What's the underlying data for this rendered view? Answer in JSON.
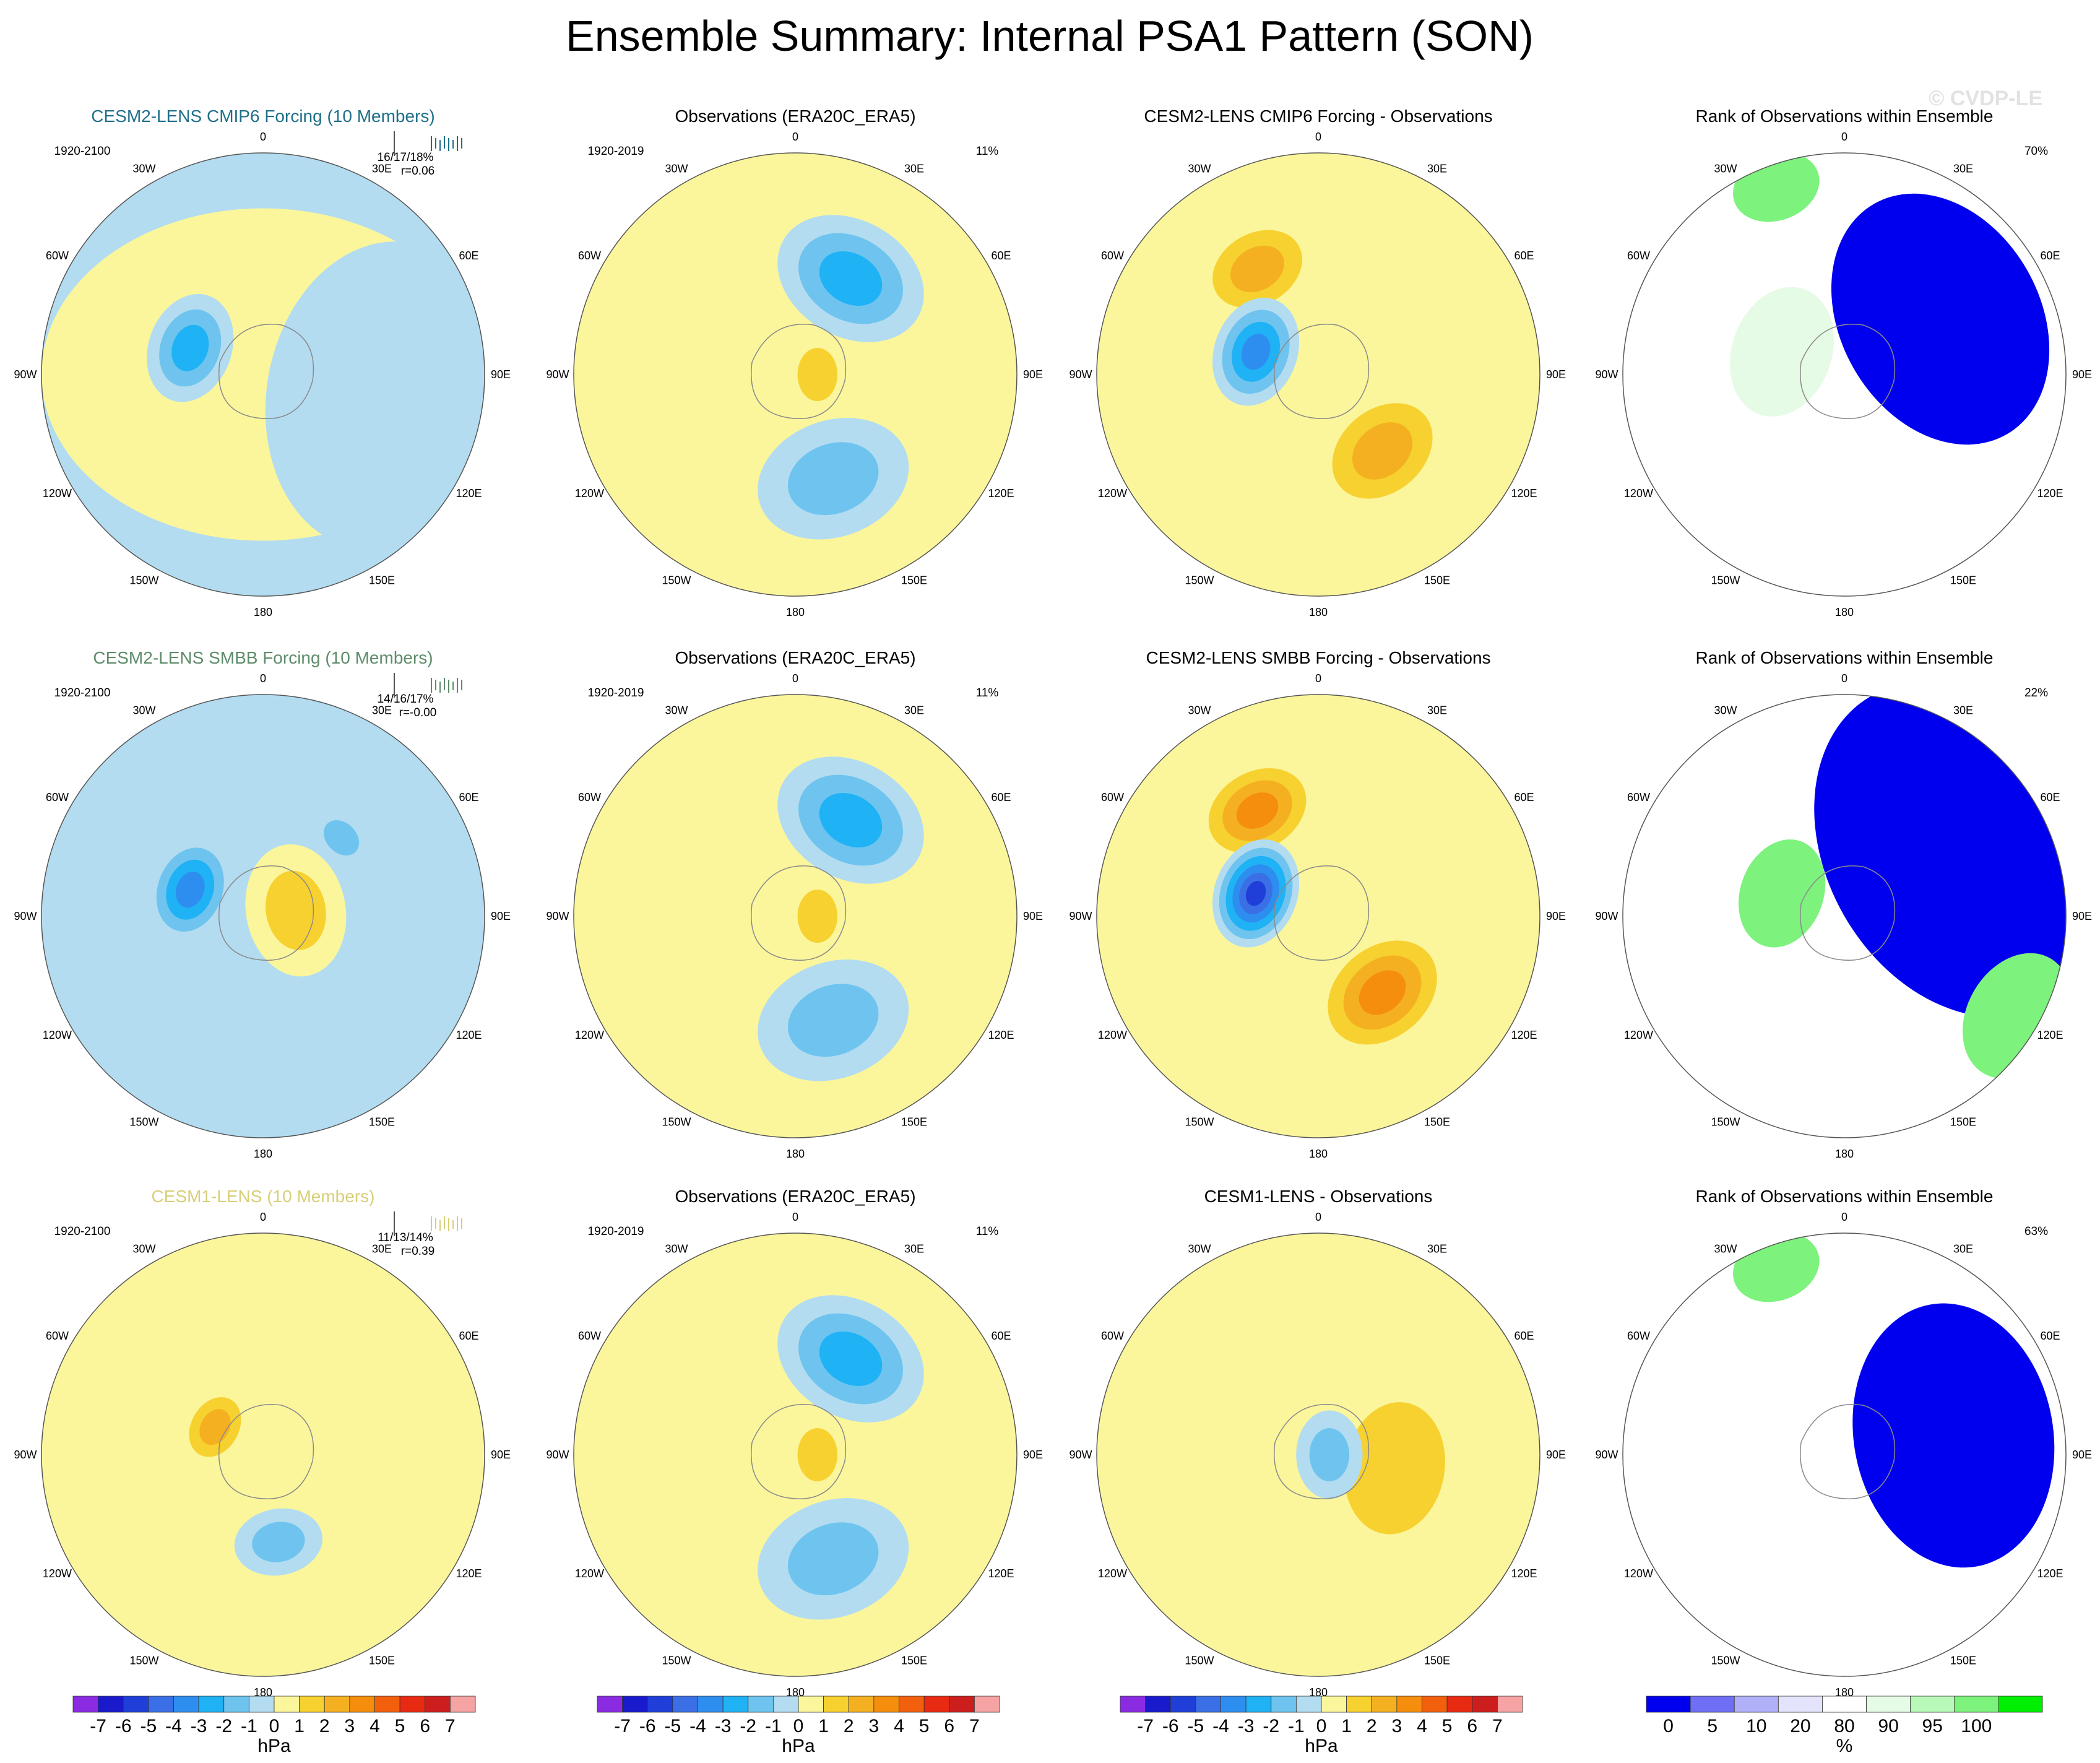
{
  "page": {
    "title": "Ensemble Summary: Internal PSA1 Pattern (SON)",
    "watermark": "© CVDP-LE"
  },
  "lon_labels": [
    "0",
    "30E",
    "60E",
    "90E",
    "120E",
    "150E",
    "180",
    "150W",
    "120W",
    "90W",
    "60W",
    "30W"
  ],
  "rows": [
    {
      "model_title": "CESM2-LENS CMIP6 Forcing (10 Members)",
      "model_color": "#1f6f8b",
      "model_period": "1920-2100",
      "model_stats": "16/17/18%",
      "model_r": "r=0.06",
      "obs_title": "Observations (ERA20C_ERA5)",
      "obs_period": "1920-2019",
      "obs_pct": "11%",
      "diff_title": "CESM2-LENS CMIP6 Forcing - Observations",
      "rank_title": "Rank of Observations within Ensemble",
      "rank_pct": "70%"
    },
    {
      "model_title": "CESM2-LENS SMBB Forcing (10 Members)",
      "model_color": "#5e8c6a",
      "model_period": "1920-2100",
      "model_stats": "14/16/17%",
      "model_r": "r=-0.00",
      "obs_title": "Observations (ERA20C_ERA5)",
      "obs_period": "1920-2019",
      "obs_pct": "11%",
      "diff_title": "CESM2-LENS SMBB Forcing - Observations",
      "rank_title": "Rank of Observations within Ensemble",
      "rank_pct": "22%"
    },
    {
      "model_title": "CESM1-LENS (10 Members)",
      "model_color": "#d8cf7a",
      "model_period": "1920-2100",
      "model_stats": "11/13/14%",
      "model_r": "r=0.39",
      "obs_title": "Observations (ERA20C_ERA5)",
      "obs_period": "1920-2019",
      "obs_pct": "11%",
      "diff_title": "CESM1-LENS - Observations",
      "rank_title": "Rank of Observations within Ensemble",
      "rank_pct": "63%"
    }
  ],
  "colorbar_hpa": {
    "ticks": [
      "-7",
      "-6",
      "-5",
      "-4",
      "-3",
      "-2",
      "-1",
      "0",
      "1",
      "2",
      "3",
      "4",
      "5",
      "6",
      "7"
    ],
    "unit": "hPa",
    "colors": [
      "#8a2be2",
      "#1a1acd",
      "#1f3fd8",
      "#3a6fe6",
      "#2e8ef0",
      "#1fb2f5",
      "#6ec4ee",
      "#b3dcf1",
      "#fbf69c",
      "#f7d12f",
      "#f5b022",
      "#f58e0c",
      "#f25f0d",
      "#e82a12",
      "#cd1e1e",
      "#f5a3a3"
    ]
  },
  "colorbar_rank": {
    "ticks": [
      "0",
      "5",
      "10",
      "20",
      "80",
      "90",
      "95",
      "100"
    ],
    "unit": "%",
    "colors": [
      "#0000ee",
      "#6f6ff5",
      "#b0b0f8",
      "#e3e3fb",
      "#ffffff",
      "#e6fbe6",
      "#b8f8b8",
      "#7df27d",
      "#00ee00"
    ]
  },
  "chart_data": {
    "type": "heatmap",
    "description_units": "PSA1 pattern sea level pressure anomaly (hPa); rank in %",
    "title": "Ensemble Summary: Internal PSA1 Pattern (SON)",
    "projection": "south polar stereographic",
    "value_levels_hpa": [
      -7,
      -6,
      -5,
      -4,
      -3,
      -2,
      -1,
      0,
      1,
      2,
      3,
      4,
      5,
      6,
      7
    ],
    "rank_levels_pct": [
      0,
      5,
      10,
      20,
      80,
      90,
      95,
      100
    ],
    "panels": [
      {
        "row": 0,
        "col": 0,
        "field": "model",
        "features": [
          {
            "lon": 0,
            "lat_frac": 0.0,
            "value": 0.5,
            "extent": 1.0
          },
          {
            "lon": 100,
            "lat_frac": 0.55,
            "value": -0.5,
            "extent": 0.7
          },
          {
            "lon": 290,
            "lat_frac": 0.35,
            "value": -2.5,
            "extent": 0.25
          }
        ]
      },
      {
        "row": 0,
        "col": 1,
        "field": "obs",
        "features": [
          {
            "lon": 30,
            "lat_frac": 0.5,
            "value": -2.5,
            "extent": 0.35
          },
          {
            "lon": 160,
            "lat_frac": 0.5,
            "value": -1.5,
            "extent": 0.35
          },
          {
            "lon": 90,
            "lat_frac": 0.1,
            "value": 1.5,
            "extent": 0.2
          }
        ]
      },
      {
        "row": 0,
        "col": 2,
        "field": "diff",
        "features": [
          {
            "lon": 330,
            "lat_frac": 0.55,
            "value": 2.5,
            "extent": 0.3
          },
          {
            "lon": 290,
            "lat_frac": 0.3,
            "value": -3.5,
            "extent": 0.25
          },
          {
            "lon": 140,
            "lat_frac": 0.45,
            "value": 2.5,
            "extent": 0.35
          }
        ]
      },
      {
        "row": 0,
        "col": 3,
        "field": "rank",
        "features": [
          {
            "lon": 60,
            "lat_frac": 0.5,
            "value": 0,
            "extent": 0.6
          },
          {
            "lon": 290,
            "lat_frac": 0.3,
            "value": 85,
            "extent": 0.3
          },
          {
            "lon": 340,
            "lat_frac": 0.9,
            "value": 100,
            "extent": 0.2
          }
        ]
      },
      {
        "row": 1,
        "col": 0,
        "field": "model",
        "features": [
          {
            "lon": 290,
            "lat_frac": 0.35,
            "value": -4.0,
            "extent": 0.25
          },
          {
            "lon": 80,
            "lat_frac": 0.15,
            "value": 2.0,
            "extent": 0.3
          },
          {
            "lon": 45,
            "lat_frac": 0.5,
            "value": -1.5,
            "extent": 0.15
          }
        ]
      },
      {
        "row": 1,
        "col": 1,
        "field": "obs",
        "features": [
          {
            "lon": 30,
            "lat_frac": 0.5,
            "value": -2.5,
            "extent": 0.35
          },
          {
            "lon": 160,
            "lat_frac": 0.5,
            "value": -1.5,
            "extent": 0.35
          },
          {
            "lon": 90,
            "lat_frac": 0.1,
            "value": 1.5,
            "extent": 0.2
          }
        ]
      },
      {
        "row": 1,
        "col": 2,
        "field": "diff",
        "features": [
          {
            "lon": 330,
            "lat_frac": 0.55,
            "value": 3.5,
            "extent": 0.3
          },
          {
            "lon": 290,
            "lat_frac": 0.3,
            "value": -5.5,
            "extent": 0.25
          },
          {
            "lon": 140,
            "lat_frac": 0.45,
            "value": 3.5,
            "extent": 0.35
          }
        ]
      },
      {
        "row": 1,
        "col": 3,
        "field": "rank",
        "features": [
          {
            "lon": 60,
            "lat_frac": 0.6,
            "value": 0,
            "extent": 0.8
          },
          {
            "lon": 290,
            "lat_frac": 0.3,
            "value": 100,
            "extent": 0.25
          },
          {
            "lon": 120,
            "lat_frac": 0.9,
            "value": 100,
            "extent": 0.3
          }
        ]
      },
      {
        "row": 2,
        "col": 0,
        "field": "model",
        "features": [
          {
            "lon": 300,
            "lat_frac": 0.25,
            "value": 2.5,
            "extent": 0.2
          },
          {
            "lon": 170,
            "lat_frac": 0.4,
            "value": -1.5,
            "extent": 0.2
          },
          {
            "lon": 30,
            "lat_frac": 0.6,
            "value": 0.5,
            "extent": 0.5
          }
        ]
      },
      {
        "row": 2,
        "col": 1,
        "field": "obs",
        "features": [
          {
            "lon": 30,
            "lat_frac": 0.5,
            "value": -2.5,
            "extent": 0.35
          },
          {
            "lon": 160,
            "lat_frac": 0.5,
            "value": -1.5,
            "extent": 0.35
          },
          {
            "lon": 90,
            "lat_frac": 0.1,
            "value": 1.5,
            "extent": 0.2
          }
        ]
      },
      {
        "row": 2,
        "col": 2,
        "field": "diff",
        "features": [
          {
            "lon": 100,
            "lat_frac": 0.35,
            "value": 1.5,
            "extent": 0.5
          },
          {
            "lon": 90,
            "lat_frac": 0.05,
            "value": -2.0,
            "extent": 0.2
          }
        ]
      },
      {
        "row": 2,
        "col": 3,
        "field": "rank",
        "features": [
          {
            "lon": 80,
            "lat_frac": 0.5,
            "value": 0,
            "extent": 0.6
          },
          {
            "lon": 340,
            "lat_frac": 0.9,
            "value": 100,
            "extent": 0.2
          }
        ]
      }
    ]
  }
}
